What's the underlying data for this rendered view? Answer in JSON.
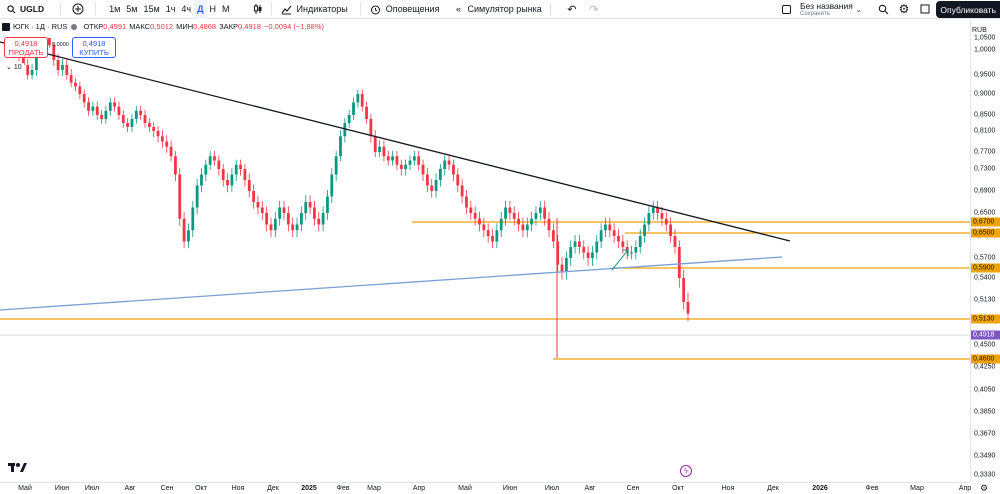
{
  "toolbar": {
    "symbol": "UGLD",
    "timeframes": [
      "1м",
      "5м",
      "15м",
      "1ч",
      "4ч",
      "Д",
      "Н",
      "М"
    ],
    "active_timeframe": "Д",
    "indicators_label": "Индикаторы",
    "alerts_label": "Оповещения",
    "replay_label": "Симулятор рынка",
    "layout_name": "Без названия",
    "layout_status": "Сохранить",
    "publish_label": "Опубликовать"
  },
  "legend": {
    "title": "ЮГК · 1Д · RUS",
    "open_label": "ОТКР",
    "open": "0,4991",
    "high_label": "МАКС",
    "high": "0,5012",
    "low_label": "МИН",
    "low": "0,4868",
    "close_label": "ЗАКР",
    "close": "0,4918",
    "change": "−0,0094 (−1,88%)"
  },
  "trade": {
    "sell_price": "0,4918",
    "sell_label": "ПРОДАТЬ",
    "buy_price": "0,4918",
    "buy_label": "КУПИТЬ",
    "spread": "0,0000",
    "collapse_label": "10"
  },
  "price_axis": {
    "currency": "RUB",
    "ticks": [
      "1,0500",
      "1,0000",
      "0,9500",
      "0,9000",
      "0,8500",
      "0,8100",
      "0,7700",
      "0,7300",
      "0,6900",
      "0,6500",
      "0,6100",
      "0,5700",
      "0,5400",
      "0,5130",
      "0,4800",
      "0,4500",
      "0,4250",
      "0,4050",
      "0,3850",
      "0,3670",
      "0,3490",
      "0,3330"
    ],
    "tags": [
      {
        "label": "0,6700",
        "kind": "level"
      },
      {
        "label": "0,6500",
        "kind": "level"
      },
      {
        "label": "0,5900",
        "kind": "level"
      },
      {
        "label": "0,5130",
        "kind": "level"
      },
      {
        "label": "0,4918",
        "kind": "price"
      },
      {
        "label": "0,4600",
        "kind": "level"
      }
    ]
  },
  "time_axis": {
    "labels": [
      {
        "text": "Май",
        "bold": false
      },
      {
        "text": "Июн",
        "bold": false
      },
      {
        "text": "Июл",
        "bold": false
      },
      {
        "text": "Авг",
        "bold": false
      },
      {
        "text": "Сен",
        "bold": false
      },
      {
        "text": "Окт",
        "bold": false
      },
      {
        "text": "Ноя",
        "bold": false
      },
      {
        "text": "Дек",
        "bold": false
      },
      {
        "text": "2025",
        "bold": true
      },
      {
        "text": "Фев",
        "bold": false
      },
      {
        "text": "Мар",
        "bold": false
      },
      {
        "text": "Апр",
        "bold": false
      },
      {
        "text": "Май",
        "bold": false
      },
      {
        "text": "Июн",
        "bold": false
      },
      {
        "text": "Июл",
        "bold": false
      },
      {
        "text": "Авг",
        "bold": false
      },
      {
        "text": "Сен",
        "bold": false
      },
      {
        "text": "Окт",
        "bold": false
      },
      {
        "text": "Ноя",
        "bold": false
      },
      {
        "text": "Дек",
        "bold": false
      },
      {
        "text": "2026",
        "bold": true
      },
      {
        "text": "Фев",
        "bold": false
      },
      {
        "text": "Мар",
        "bold": false
      },
      {
        "text": "Апр",
        "bold": false
      }
    ]
  },
  "colors": {
    "up": "#089981",
    "down": "#f23645",
    "level": "#f0a30a",
    "trend_black": "#131722",
    "trend_blue": "#7a9fd6",
    "price_tag": "#7e57c2",
    "accent": "#2962ff"
  },
  "chart_data": {
    "type": "candlestick",
    "price_levels": [
      0.67,
      0.65,
      0.59,
      0.513,
      0.46
    ],
    "last_price": 0.4918,
    "closes": [
      1.02,
      1.04,
      1.01,
      0.99,
      0.97,
      0.95,
      0.96,
      1.0,
      1.03,
      1.05,
      1.02,
      0.98,
      0.96,
      0.97,
      0.95,
      0.93,
      0.92,
      0.9,
      0.88,
      0.86,
      0.87,
      0.85,
      0.84,
      0.86,
      0.88,
      0.87,
      0.85,
      0.83,
      0.82,
      0.84,
      0.86,
      0.85,
      0.83,
      0.82,
      0.81,
      0.8,
      0.79,
      0.78,
      0.76,
      0.72,
      0.64,
      0.6,
      0.62,
      0.66,
      0.7,
      0.72,
      0.74,
      0.76,
      0.75,
      0.73,
      0.71,
      0.7,
      0.72,
      0.74,
      0.73,
      0.71,
      0.69,
      0.67,
      0.66,
      0.65,
      0.63,
      0.62,
      0.64,
      0.66,
      0.65,
      0.63,
      0.62,
      0.63,
      0.65,
      0.67,
      0.66,
      0.64,
      0.63,
      0.65,
      0.68,
      0.72,
      0.76,
      0.8,
      0.83,
      0.85,
      0.88,
      0.9,
      0.87,
      0.84,
      0.8,
      0.77,
      0.78,
      0.76,
      0.75,
      0.76,
      0.74,
      0.73,
      0.74,
      0.75,
      0.76,
      0.74,
      0.72,
      0.7,
      0.69,
      0.71,
      0.73,
      0.75,
      0.74,
      0.72,
      0.7,
      0.68,
      0.66,
      0.65,
      0.64,
      0.63,
      0.62,
      0.61,
      0.6,
      0.62,
      0.64,
      0.66,
      0.65,
      0.64,
      0.63,
      0.62,
      0.63,
      0.64,
      0.65,
      0.66,
      0.64,
      0.62,
      0.6,
      0.56,
      0.55,
      0.57,
      0.59,
      0.6,
      0.59,
      0.58,
      0.57,
      0.58,
      0.6,
      0.62,
      0.63,
      0.62,
      0.61,
      0.6,
      0.59,
      0.58,
      0.58,
      0.59,
      0.61,
      0.63,
      0.65,
      0.66,
      0.65,
      0.64,
      0.63,
      0.61,
      0.59,
      0.54,
      0.51,
      0.4918
    ]
  }
}
